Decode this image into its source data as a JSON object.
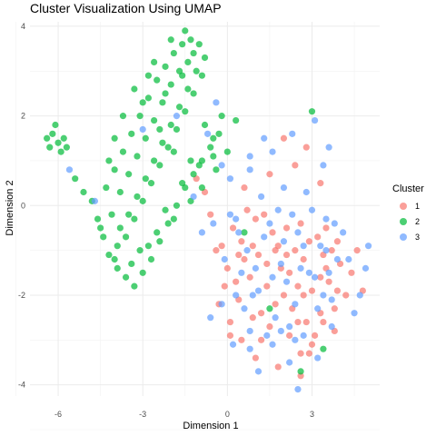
{
  "chart_data": {
    "type": "scatter",
    "title": "Cluster Visualization Using UMAP",
    "xlabel": "Dimension 1",
    "ylabel": "Dimension 2",
    "xlim": [
      -7.0,
      5.4
    ],
    "ylim": [
      -4.25,
      4.1
    ],
    "xticks": [
      -6,
      -3,
      0,
      3
    ],
    "xtick_labels": [
      "-6",
      "-3",
      "0",
      "3"
    ],
    "yticks": [
      -4,
      -2,
      0,
      2,
      4
    ],
    "ytick_labels": [
      "-4",
      "-2",
      "0",
      "2",
      "4"
    ],
    "grid": true,
    "legend": {
      "title": "Cluster",
      "placement": "right"
    },
    "series": [
      {
        "name": "1",
        "color": "#F8766D",
        "points": [
          [
            0.2,
            -0.5
          ],
          [
            0.6,
            -1.2
          ],
          [
            1.0,
            -0.3
          ],
          [
            1.4,
            -1.8
          ],
          [
            1.8,
            -0.9
          ],
          [
            2.2,
            -1.5
          ],
          [
            2.6,
            -0.4
          ],
          [
            3.0,
            -1.9
          ],
          [
            3.4,
            -1.1
          ],
          [
            3.8,
            -2.3
          ],
          [
            0.4,
            -2.1
          ],
          [
            0.8,
            -1.6
          ],
          [
            1.2,
            -2.4
          ],
          [
            1.6,
            -0.6
          ],
          [
            2.0,
            -2.0
          ],
          [
            2.4,
            -1.0
          ],
          [
            2.8,
            -2.6
          ],
          [
            3.2,
            -0.7
          ],
          [
            3.6,
            -1.7
          ],
          [
            4.0,
            -1.3
          ],
          [
            0.0,
            -1.4
          ],
          [
            0.5,
            -0.8
          ],
          [
            1.1,
            -1.1
          ],
          [
            1.5,
            -2.7
          ],
          [
            1.9,
            -1.4
          ],
          [
            2.3,
            -2.3
          ],
          [
            2.7,
            -1.2
          ],
          [
            3.1,
            -2.9
          ],
          [
            3.5,
            -0.5
          ],
          [
            3.9,
            -1.9
          ],
          [
            -0.2,
            -0.9
          ],
          [
            0.3,
            -1.7
          ],
          [
            0.9,
            -2.5
          ],
          [
            1.3,
            -0.2
          ],
          [
            1.7,
            -2.2
          ],
          [
            2.1,
            -0.5
          ],
          [
            2.5,
            -1.8
          ],
          [
            2.9,
            -0.8
          ],
          [
            3.3,
            -2.4
          ],
          [
            3.7,
            -1.0
          ],
          [
            4.2,
            -2.0
          ],
          [
            4.4,
            -1.5
          ],
          [
            0.1,
            -2.6
          ],
          [
            0.7,
            -0.1
          ],
          [
            1.2,
            -3.0
          ],
          [
            2.2,
            -2.9
          ],
          [
            2.6,
            -3.3
          ],
          [
            3.0,
            -3.1
          ],
          [
            3.4,
            -2.6
          ],
          [
            1.0,
            -3.4
          ],
          [
            0.5,
            -3.0
          ],
          [
            -0.3,
            -2.2
          ],
          [
            -0.4,
            -1.0
          ],
          [
            4.6,
            -1.0
          ],
          [
            4.8,
            -1.9
          ],
          [
            0.6,
            0.4
          ],
          [
            1.5,
            0.7
          ],
          [
            2.4,
            0.9
          ],
          [
            3.3,
            0.5
          ],
          [
            2.0,
            1.5
          ],
          [
            2.8,
            1.3
          ],
          [
            -0.8,
            0.3
          ],
          [
            -1.1,
            0.6
          ],
          [
            -0.6,
            -0.2
          ],
          [
            1.8,
            -3.6
          ],
          [
            2.9,
            -3.3
          ],
          [
            2.6,
            -3.8
          ],
          [
            0.1,
            -2.9
          ],
          [
            0.9,
            -0.9
          ],
          [
            2.1,
            -1.1
          ],
          [
            3.5,
            -1.4
          ],
          [
            1.4,
            -1.3
          ],
          [
            2.7,
            -2.0
          ],
          [
            3.9,
            -0.8
          ],
          [
            -0.1,
            -1.8
          ],
          [
            1.7,
            -1.0
          ],
          [
            2.5,
            -2.6
          ],
          [
            3.3,
            -1.6
          ],
          [
            0.4,
            -1.1
          ],
          [
            3.8,
            -2.8
          ]
        ]
      },
      {
        "name": "2",
        "color": "#00BA38",
        "points": [
          [
            -6.2,
            1.6
          ],
          [
            -6.0,
            1.4
          ],
          [
            -5.8,
            1.5
          ],
          [
            -6.4,
            1.5
          ],
          [
            -5.7,
            1.3
          ],
          [
            -6.1,
            1.8
          ],
          [
            -5.9,
            1.2
          ],
          [
            -6.3,
            1.3
          ],
          [
            -5.4,
            0.6
          ],
          [
            -5.1,
            0.3
          ],
          [
            -4.8,
            0.1
          ],
          [
            -4.6,
            -0.3
          ],
          [
            -4.4,
            -0.7
          ],
          [
            -4.2,
            -1.1
          ],
          [
            -3.9,
            -1.4
          ],
          [
            -3.6,
            -1.6
          ],
          [
            -3.3,
            -1.8
          ],
          [
            -3.0,
            -1.5
          ],
          [
            -2.7,
            -1.2
          ],
          [
            -2.4,
            -0.8
          ],
          [
            -2.1,
            -0.4
          ],
          [
            -1.8,
            0.0
          ],
          [
            -1.5,
            0.4
          ],
          [
            -1.2,
            0.7
          ],
          [
            -0.9,
            1.0
          ],
          [
            -0.6,
            1.3
          ],
          [
            -0.3,
            1.6
          ],
          [
            -4.3,
            0.4
          ],
          [
            -4.0,
            0.8
          ],
          [
            -3.7,
            1.2
          ],
          [
            -3.4,
            1.6
          ],
          [
            -3.1,
            2.0
          ],
          [
            -2.8,
            2.4
          ],
          [
            -2.5,
            2.8
          ],
          [
            -2.2,
            3.1
          ],
          [
            -1.9,
            3.4
          ],
          [
            -1.6,
            3.6
          ],
          [
            -1.3,
            3.7
          ],
          [
            -1.0,
            3.6
          ],
          [
            -0.8,
            3.3
          ],
          [
            -0.9,
            2.9
          ],
          [
            -1.2,
            2.5
          ],
          [
            -1.5,
            2.1
          ],
          [
            -1.8,
            1.7
          ],
          [
            -2.1,
            1.3
          ],
          [
            -2.4,
            0.9
          ],
          [
            -2.7,
            0.5
          ],
          [
            -3.0,
            0.1
          ],
          [
            -3.3,
            -0.3
          ],
          [
            -3.6,
            -0.7
          ],
          [
            -3.9,
            -0.9
          ],
          [
            -4.1,
            -0.2
          ],
          [
            -3.8,
            0.3
          ],
          [
            -3.5,
            0.7
          ],
          [
            -3.2,
            1.1
          ],
          [
            -2.9,
            1.5
          ],
          [
            -2.6,
            1.9
          ],
          [
            -2.3,
            2.3
          ],
          [
            -2.0,
            2.7
          ],
          [
            -1.7,
            3.0
          ],
          [
            -1.4,
            3.2
          ],
          [
            -1.1,
            3.0
          ],
          [
            -1.4,
            2.6
          ],
          [
            -1.7,
            2.2
          ],
          [
            -2.0,
            1.8
          ],
          [
            -2.3,
            1.4
          ],
          [
            -2.6,
            1.0
          ],
          [
            -2.9,
            0.6
          ],
          [
            -3.2,
            0.2
          ],
          [
            -3.5,
            -0.2
          ],
          [
            -3.8,
            -0.5
          ],
          [
            -4.5,
            -0.5
          ],
          [
            -4.0,
            -1.2
          ],
          [
            -3.4,
            -1.3
          ],
          [
            -2.8,
            -0.9
          ],
          [
            -2.2,
            -0.1
          ],
          [
            -1.6,
            0.5
          ],
          [
            -1.0,
            0.9
          ],
          [
            -0.5,
            1.1
          ],
          [
            0.0,
            1.2
          ],
          [
            -0.4,
            0.8
          ],
          [
            -0.9,
            0.4
          ],
          [
            -1.3,
            0.1
          ],
          [
            -1.9,
            -0.3
          ],
          [
            -2.5,
            -0.6
          ],
          [
            -3.1,
            -1.0
          ],
          [
            -0.2,
            2.0
          ],
          [
            0.3,
            1.9
          ],
          [
            -1.3,
            1.0
          ],
          [
            -1.9,
            1.2
          ],
          [
            -2.4,
            1.7
          ],
          [
            -3.0,
            2.3
          ],
          [
            -2.6,
            3.2
          ],
          [
            -2.0,
            3.7
          ],
          [
            -1.5,
            3.9
          ],
          [
            -1.2,
            3.4
          ],
          [
            -1.6,
            2.9
          ],
          [
            -2.2,
            2.5
          ],
          [
            -2.8,
            2.9
          ],
          [
            -3.3,
            2.6
          ],
          [
            -3.7,
            2.0
          ],
          [
            -4.0,
            1.5
          ],
          [
            -4.2,
            1.0
          ],
          [
            -0.8,
            1.8
          ],
          [
            -0.5,
            1.5
          ],
          [
            3.0,
            2.1
          ],
          [
            0.6,
            -0.6
          ],
          [
            1.5,
            -2.3
          ],
          [
            2.6,
            -3.7
          ],
          [
            3.4,
            -3.2
          ]
        ]
      },
      {
        "name": "3",
        "color": "#619CFF",
        "points": [
          [
            0.3,
            -0.3
          ],
          [
            0.7,
            -1.0
          ],
          [
            1.1,
            -1.9
          ],
          [
            1.5,
            -0.4
          ],
          [
            1.9,
            -1.3
          ],
          [
            2.3,
            -0.2
          ],
          [
            2.7,
            -0.9
          ],
          [
            3.1,
            -1.6
          ],
          [
            3.5,
            -0.3
          ],
          [
            3.9,
            -1.2
          ],
          [
            0.5,
            -1.5
          ],
          [
            0.9,
            -2.0
          ],
          [
            1.3,
            -0.7
          ],
          [
            1.7,
            -2.5
          ],
          [
            2.1,
            -1.7
          ],
          [
            2.5,
            -0.6
          ],
          [
            2.9,
            -1.5
          ],
          [
            3.3,
            -0.9
          ],
          [
            3.7,
            -2.1
          ],
          [
            4.1,
            -0.6
          ],
          [
            0.1,
            -0.2
          ],
          [
            0.6,
            -2.3
          ],
          [
            1.0,
            -1.4
          ],
          [
            1.4,
            -2.9
          ],
          [
            1.8,
            -0.1
          ],
          [
            2.2,
            -2.7
          ],
          [
            2.6,
            -1.4
          ],
          [
            3.0,
            -0.1
          ],
          [
            3.4,
            -2.0
          ],
          [
            3.8,
            -0.4
          ],
          [
            -0.1,
            -1.2
          ],
          [
            0.4,
            -0.6
          ],
          [
            0.8,
            -2.8
          ],
          [
            1.2,
            0.2
          ],
          [
            1.6,
            -1.6
          ],
          [
            2.0,
            -0.8
          ],
          [
            2.4,
            -2.2
          ],
          [
            2.8,
            0.3
          ],
          [
            3.2,
            -2.3
          ],
          [
            3.6,
            -1.5
          ],
          [
            4.3,
            -1.2
          ],
          [
            4.5,
            -2.4
          ],
          [
            4.9,
            -1.4
          ],
          [
            5.0,
            -0.9
          ],
          [
            0.2,
            -3.1
          ],
          [
            0.8,
            -3.2
          ],
          [
            1.6,
            -3.1
          ],
          [
            2.4,
            -3.0
          ],
          [
            3.2,
            -3.4
          ],
          [
            -0.6,
            -2.5
          ],
          [
            -0.5,
            -0.4
          ],
          [
            -0.9,
            -0.6
          ],
          [
            -1.2,
            0.2
          ],
          [
            0.1,
            0.6
          ],
          [
            0.8,
            0.8
          ],
          [
            1.6,
            1.2
          ],
          [
            2.3,
            1.6
          ],
          [
            3.1,
            1.9
          ],
          [
            3.6,
            1.3
          ],
          [
            -0.2,
            0.9
          ],
          [
            -5.6,
            0.8
          ],
          [
            -4.7,
            0.1
          ],
          [
            -3.0,
            1.7
          ],
          [
            -1.8,
            2.0
          ],
          [
            -0.4,
            2.3
          ],
          [
            0.8,
            1.1
          ],
          [
            1.3,
            1.5
          ],
          [
            3.4,
            0.9
          ],
          [
            -0.7,
            1.6
          ],
          [
            2.2,
            -3.5
          ],
          [
            2.5,
            -4.1
          ],
          [
            1.1,
            -3.7
          ],
          [
            3.7,
            -2.7
          ],
          [
            0.3,
            -2.0
          ],
          [
            2.7,
            -2.9
          ],
          [
            1.9,
            -2.8
          ],
          [
            4.7,
            -2.0
          ],
          [
            -0.2,
            -2.2
          ],
          [
            3.5,
            -1.0
          ],
          [
            2.0,
            0.4
          ]
        ]
      }
    ]
  }
}
